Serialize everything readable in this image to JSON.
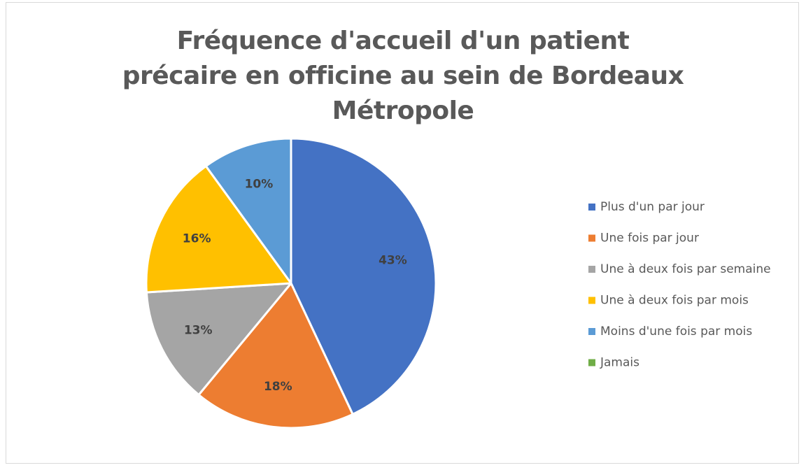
{
  "chart_data": {
    "type": "pie",
    "title": "Fréquence d'accueil d'un patient précaire en officine au sein de Bordeaux Métropole",
    "categories": [
      "Plus d'un par jour",
      "Une fois par jour",
      "Une à deux fois par semaine",
      "Une à deux fois par mois",
      "Moins d'une fois par mois",
      "Jamais"
    ],
    "values": [
      43,
      18,
      13,
      16,
      10,
      0
    ],
    "value_labels": [
      "43%",
      "18%",
      "13%",
      "16%",
      "10%",
      null
    ],
    "colors": [
      "#4472c4",
      "#ed7d31",
      "#a5a5a5",
      "#ffc000",
      "#5b9bd5",
      "#70ad47"
    ],
    "legend": "right"
  }
}
